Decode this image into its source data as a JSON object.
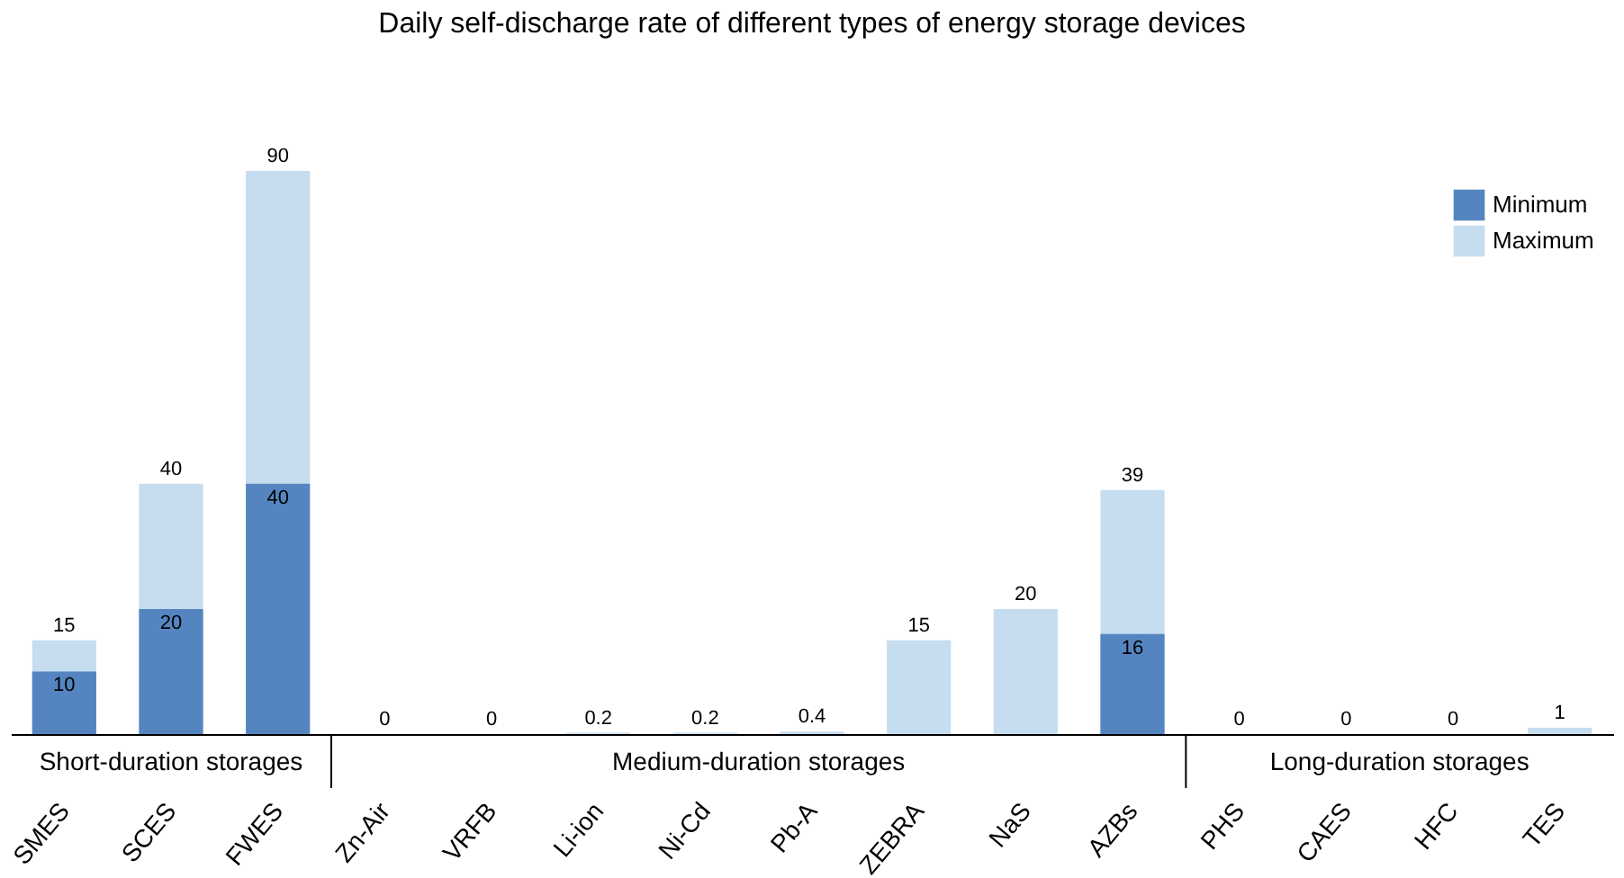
{
  "chart_data": {
    "type": "bar",
    "title": "Daily self-discharge rate of different types of energy storage devices",
    "categories": [
      "SMES",
      "SCES",
      "FWES",
      "Zn-Air",
      "VRFB",
      "Li-ion",
      "Ni-Cd",
      "Pb-A",
      "ZEBRA",
      "NaS",
      "AZBs",
      "PHS",
      "CAES",
      "HFC",
      "TES"
    ],
    "series": [
      {
        "name": "Maximum",
        "color": "#c6ddf0",
        "values": [
          15,
          40,
          90,
          0,
          0,
          0.2,
          0.2,
          0.4,
          15,
          20,
          39,
          0,
          0,
          0,
          1
        ]
      },
      {
        "name": "Minimum",
        "color": "#5585c0",
        "values": [
          10,
          20,
          40,
          null,
          null,
          null,
          null,
          null,
          null,
          null,
          16,
          null,
          null,
          null,
          null
        ]
      }
    ],
    "annotations": [
      "Short-duration storages",
      "Medium-duration storages",
      "Long-duration storages"
    ],
    "data_labels": true,
    "legend": "top right",
    "grid": false
  }
}
